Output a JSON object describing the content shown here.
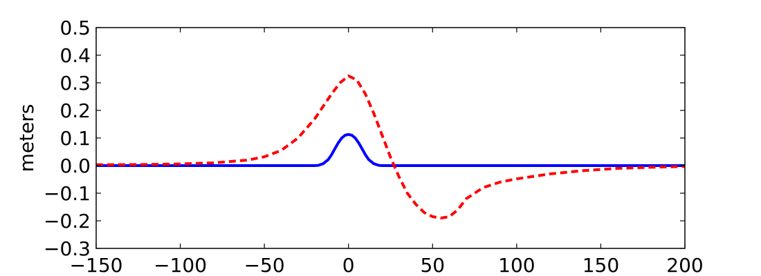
{
  "chart_data": {
    "type": "line",
    "title": "",
    "xlabel": "",
    "ylabel": "meters",
    "xlim": [
      -150,
      200
    ],
    "ylim": [
      -0.3,
      0.5
    ],
    "xticks": [
      -150,
      -100,
      -50,
      0,
      50,
      100,
      150,
      200
    ],
    "xtick_labels": [
      "−150",
      "−100",
      "−50",
      "0",
      "50",
      "100",
      "150",
      "200"
    ],
    "yticks": [
      -0.3,
      -0.2,
      -0.1,
      0.0,
      0.1,
      0.2,
      0.3,
      0.4,
      0.5
    ],
    "ytick_labels": [
      "−0.3",
      "−0.2",
      "−0.1",
      "0.0",
      "0.1",
      "0.2",
      "0.3",
      "0.4",
      "0.5"
    ],
    "grid": false,
    "legend": "none",
    "series": [
      {
        "color": "#0000ff",
        "style": "solid",
        "x": [
          -150,
          -20,
          -18,
          -15,
          -12,
          -10,
          -8,
          -6,
          -4,
          -2,
          0,
          2,
          4,
          6,
          8,
          10,
          12,
          15,
          18,
          20,
          200
        ],
        "y": [
          0,
          0,
          0.001,
          0.007,
          0.022,
          0.04,
          0.062,
          0.083,
          0.1,
          0.11,
          0.113,
          0.11,
          0.1,
          0.083,
          0.062,
          0.04,
          0.022,
          0.007,
          0.001,
          0,
          0
        ]
      },
      {
        "color": "#ff0000",
        "style": "dashed",
        "x": [
          -150,
          -120,
          -100,
          -80,
          -60,
          -50,
          -40,
          -30,
          -20,
          -10,
          -5,
          0,
          5,
          10,
          15,
          20,
          25,
          30,
          35,
          40,
          45,
          50,
          55,
          60,
          65,
          70,
          80,
          90,
          100,
          120,
          140,
          160,
          180,
          200
        ],
        "y": [
          0.003,
          0.004,
          0.006,
          0.01,
          0.02,
          0.032,
          0.055,
          0.1,
          0.17,
          0.26,
          0.3,
          0.325,
          0.31,
          0.26,
          0.19,
          0.11,
          0.03,
          -0.04,
          -0.1,
          -0.14,
          -0.17,
          -0.185,
          -0.19,
          -0.185,
          -0.16,
          -0.12,
          -0.08,
          -0.06,
          -0.048,
          -0.03,
          -0.018,
          -0.01,
          -0.006,
          -0.003
        ]
      }
    ]
  }
}
